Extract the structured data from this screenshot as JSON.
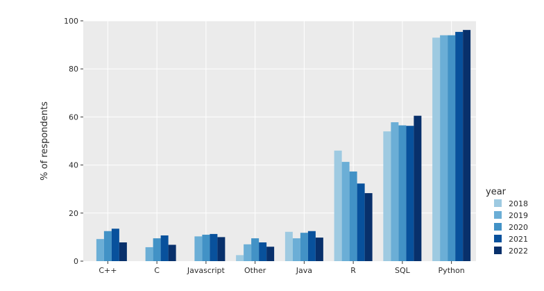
{
  "chart_data": {
    "type": "bar",
    "title": "",
    "xlabel": "",
    "ylabel": "% of respondents",
    "ylim": [
      0,
      100
    ],
    "yticks": [
      0,
      20,
      40,
      60,
      80,
      100
    ],
    "grid": true,
    "legend": {
      "title": "year",
      "placement": "right"
    },
    "categories": [
      "C++",
      "C",
      "Javascript",
      "Other",
      "Java",
      "R",
      "SQL",
      "Python"
    ],
    "series": [
      {
        "name": "2018",
        "color": "#9ecae1",
        "values": [
          0,
          0,
          0,
          2.5,
          12.2,
          46.0,
          54.0,
          93.0
        ]
      },
      {
        "name": "2019",
        "color": "#6baed6",
        "values": [
          9.2,
          5.8,
          10.3,
          7.0,
          9.5,
          41.3,
          57.8,
          94.0
        ]
      },
      {
        "name": "2020",
        "color": "#4292c6",
        "values": [
          12.5,
          9.5,
          11.0,
          9.5,
          11.8,
          37.3,
          56.5,
          94.0
        ]
      },
      {
        "name": "2021",
        "color": "#08519c",
        "values": [
          13.5,
          10.7,
          11.3,
          7.8,
          12.5,
          32.3,
          56.3,
          95.4
        ]
      },
      {
        "name": "2022",
        "color": "#08306b",
        "values": [
          7.8,
          6.8,
          10.0,
          6.0,
          9.8,
          28.3,
          60.5,
          96.2
        ]
      }
    ]
  }
}
